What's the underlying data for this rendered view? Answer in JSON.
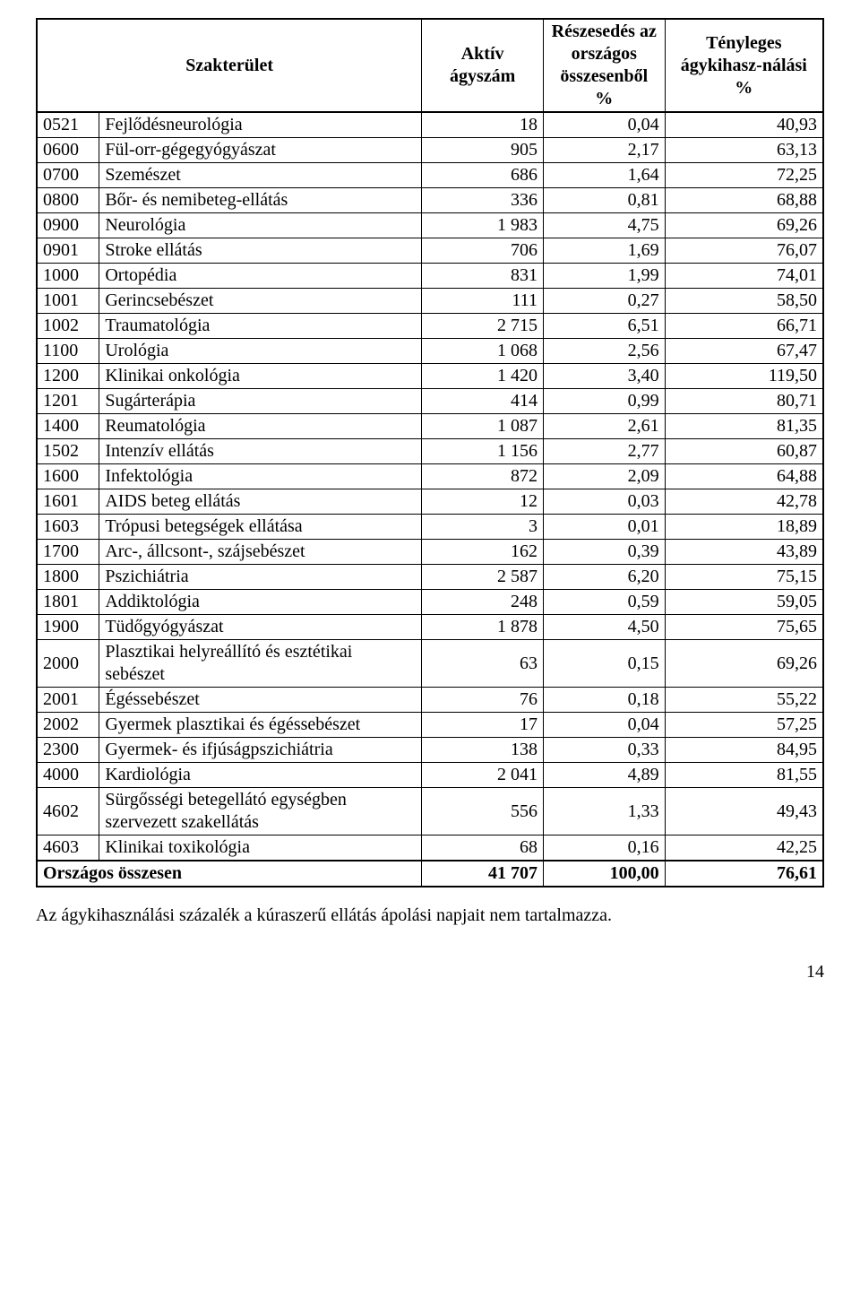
{
  "headers": {
    "spec": "Szakterület",
    "active": "Aktív ágyszám",
    "share": "Részesedés az országos összesenből %",
    "util": "Tényleges ágykihasz-nálási %"
  },
  "rows": [
    {
      "code": "0521",
      "name": "Fejlődésneurológia",
      "a": "18",
      "s": "0,04",
      "u": "40,93"
    },
    {
      "code": "0600",
      "name": "Fül-orr-gégegyógyászat",
      "a": "905",
      "s": "2,17",
      "u": "63,13"
    },
    {
      "code": "0700",
      "name": "Szemészet",
      "a": "686",
      "s": "1,64",
      "u": "72,25"
    },
    {
      "code": "0800",
      "name": "Bőr- és nemibeteg-ellátás",
      "a": "336",
      "s": "0,81",
      "u": "68,88"
    },
    {
      "code": "0900",
      "name": "Neurológia",
      "a": "1 983",
      "s": "4,75",
      "u": "69,26"
    },
    {
      "code": "0901",
      "name": "Stroke ellátás",
      "a": "706",
      "s": "1,69",
      "u": "76,07"
    },
    {
      "code": "1000",
      "name": "Ortopédia",
      "a": "831",
      "s": "1,99",
      "u": "74,01"
    },
    {
      "code": "1001",
      "name": "Gerincsebészet",
      "a": "111",
      "s": "0,27",
      "u": "58,50"
    },
    {
      "code": "1002",
      "name": "Traumatológia",
      "a": "2 715",
      "s": "6,51",
      "u": "66,71"
    },
    {
      "code": "1100",
      "name": "Urológia",
      "a": "1 068",
      "s": "2,56",
      "u": "67,47"
    },
    {
      "code": "1200",
      "name": "Klinikai onkológia",
      "a": "1 420",
      "s": "3,40",
      "u": "119,50"
    },
    {
      "code": "1201",
      "name": "Sugárterápia",
      "a": "414",
      "s": "0,99",
      "u": "80,71"
    },
    {
      "code": "1400",
      "name": "Reumatológia",
      "a": "1 087",
      "s": "2,61",
      "u": "81,35"
    },
    {
      "code": "1502",
      "name": "Intenzív ellátás",
      "a": "1 156",
      "s": "2,77",
      "u": "60,87"
    },
    {
      "code": "1600",
      "name": "Infektológia",
      "a": "872",
      "s": "2,09",
      "u": "64,88"
    },
    {
      "code": "1601",
      "name": "AIDS beteg ellátás",
      "a": "12",
      "s": "0,03",
      "u": "42,78"
    },
    {
      "code": "1603",
      "name": "Trópusi betegségek ellátása",
      "a": "3",
      "s": "0,01",
      "u": "18,89"
    },
    {
      "code": "1700",
      "name": "Arc-, állcsont-, szájsebészet",
      "a": "162",
      "s": "0,39",
      "u": "43,89"
    },
    {
      "code": "1800",
      "name": "Pszichiátria",
      "a": "2 587",
      "s": "6,20",
      "u": "75,15"
    },
    {
      "code": "1801",
      "name": "Addiktológia",
      "a": "248",
      "s": "0,59",
      "u": "59,05"
    },
    {
      "code": "1900",
      "name": "Tüdőgyógyászat",
      "a": "1 878",
      "s": "4,50",
      "u": "75,65"
    },
    {
      "code": "2000",
      "name": "Plasztikai helyreállító és esztétikai sebészet",
      "a": "63",
      "s": "0,15",
      "u": "69,26"
    },
    {
      "code": "2001",
      "name": "Égéssebészet",
      "a": "76",
      "s": "0,18",
      "u": "55,22"
    },
    {
      "code": "2002",
      "name": "Gyermek plasztikai és égéssebészet",
      "a": "17",
      "s": "0,04",
      "u": "57,25"
    },
    {
      "code": "2300",
      "name": "Gyermek- és ifjúságpszichiátria",
      "a": "138",
      "s": "0,33",
      "u": "84,95"
    },
    {
      "code": "4000",
      "name": "Kardiológia",
      "a": "2 041",
      "s": "4,89",
      "u": "81,55"
    },
    {
      "code": "4602",
      "name": "Sürgősségi betegellátó egységben szervezett szakellátás",
      "a": "556",
      "s": "1,33",
      "u": "49,43"
    },
    {
      "code": "4603",
      "name": "Klinikai toxikológia",
      "a": "68",
      "s": "0,16",
      "u": "42,25"
    }
  ],
  "total": {
    "label": "Országos összesen",
    "a": "41 707",
    "s": "100,00",
    "u": "76,61"
  },
  "footnote": "Az ágykihasználási százalék a kúraszerű ellátás ápolási napjait nem tartalmazza.",
  "pageNumber": "14"
}
